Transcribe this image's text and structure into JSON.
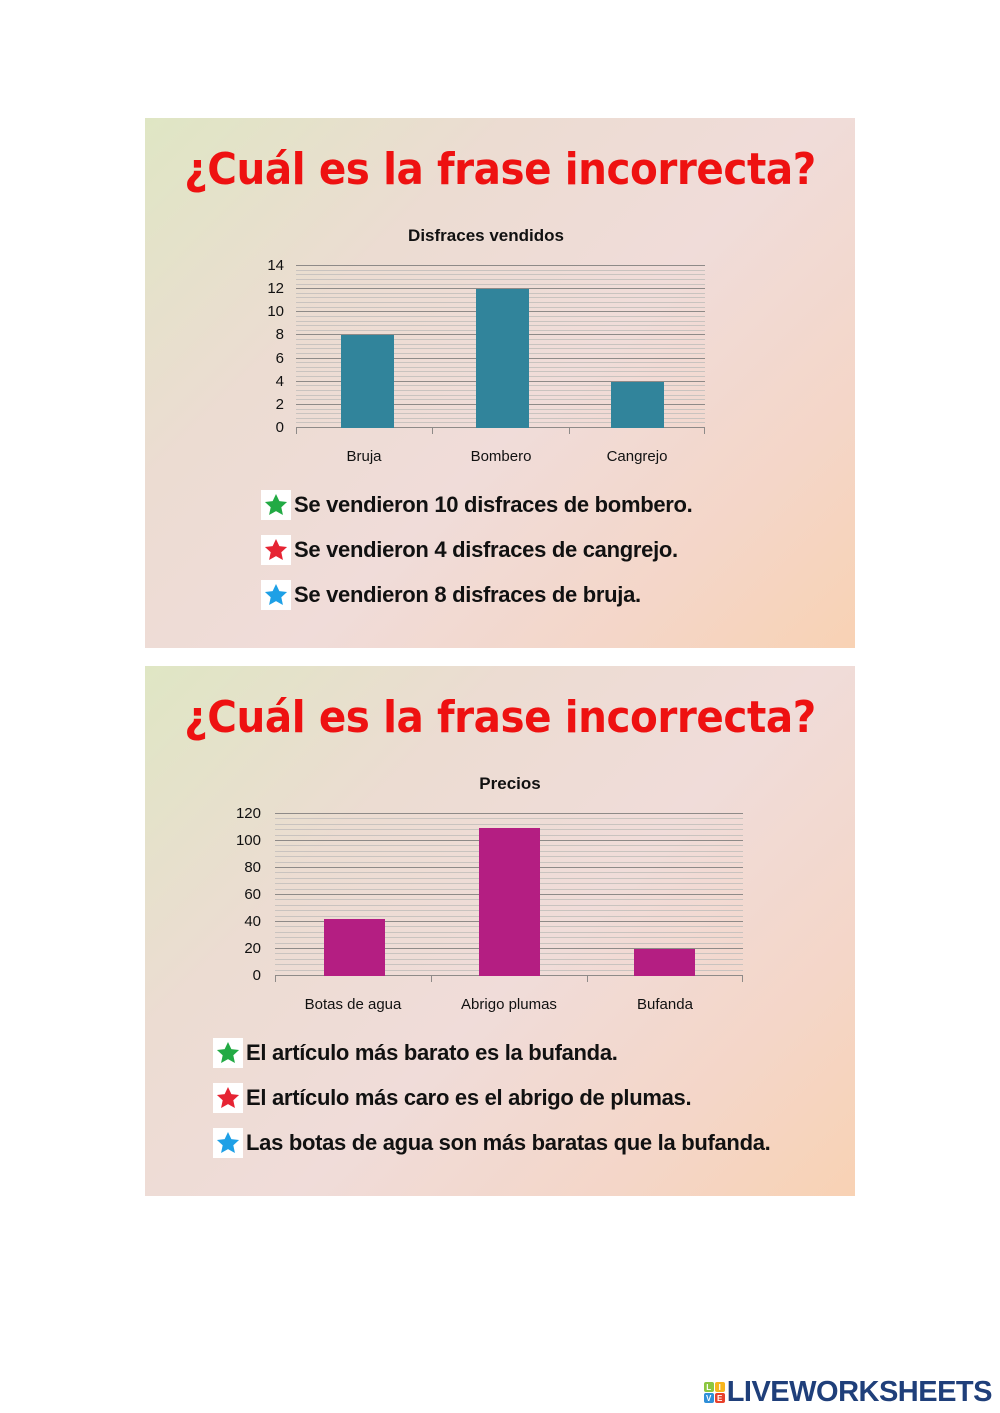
{
  "slides": [
    {
      "title": "¿Cuál es la frase incorrecta?",
      "options": [
        {
          "star": "green-star-icon",
          "color": "#22aa44",
          "text": "Se vendieron 10 disfraces de bombero."
        },
        {
          "star": "red-star-icon",
          "color": "#e62433",
          "text": "Se vendieron 4 disfraces de cangrejo."
        },
        {
          "star": "blue-star-icon",
          "color": "#1ea0e6",
          "text": "Se vendieron 8 disfraces de bruja."
        }
      ]
    },
    {
      "title": "¿Cuál es la frase incorrecta?",
      "options": [
        {
          "star": "green-star-icon",
          "color": "#22aa44",
          "text": "El artículo más barato es la bufanda."
        },
        {
          "star": "red-star-icon",
          "color": "#e62433",
          "text": "El artículo más caro es el abrigo de plumas."
        },
        {
          "star": "blue-star-icon",
          "color": "#1ea0e6",
          "text": "Las botas de agua son más baratas que la bufanda."
        }
      ]
    }
  ],
  "chart_data": [
    {
      "type": "bar",
      "title": "Disfraces vendidos",
      "categories": [
        "Bruja",
        "Bombero",
        "Cangrejo"
      ],
      "values": [
        8,
        12,
        4
      ],
      "xlabel": "",
      "ylabel": "",
      "ylim": [
        0,
        14
      ],
      "yticks": [
        "0",
        "2",
        "4",
        "6",
        "8",
        "10",
        "12",
        "14"
      ],
      "grid": true,
      "legend": "none",
      "bar_color": "#31849b"
    },
    {
      "type": "bar",
      "title": "Precios",
      "categories": [
        "Botas de agua",
        "Abrigo plumas",
        "Bufanda"
      ],
      "values": [
        42,
        110,
        20
      ],
      "xlabel": "",
      "ylabel": "",
      "ylim": [
        0,
        120
      ],
      "yticks": [
        "0",
        "20",
        "40",
        "60",
        "80",
        "100",
        "120"
      ],
      "grid": true,
      "legend": "none",
      "bar_color": "#b41e82"
    }
  ],
  "brand": {
    "logo_letters": [
      "L",
      "I",
      "V",
      "E"
    ],
    "name": "LIVEWORKSHEETS"
  }
}
